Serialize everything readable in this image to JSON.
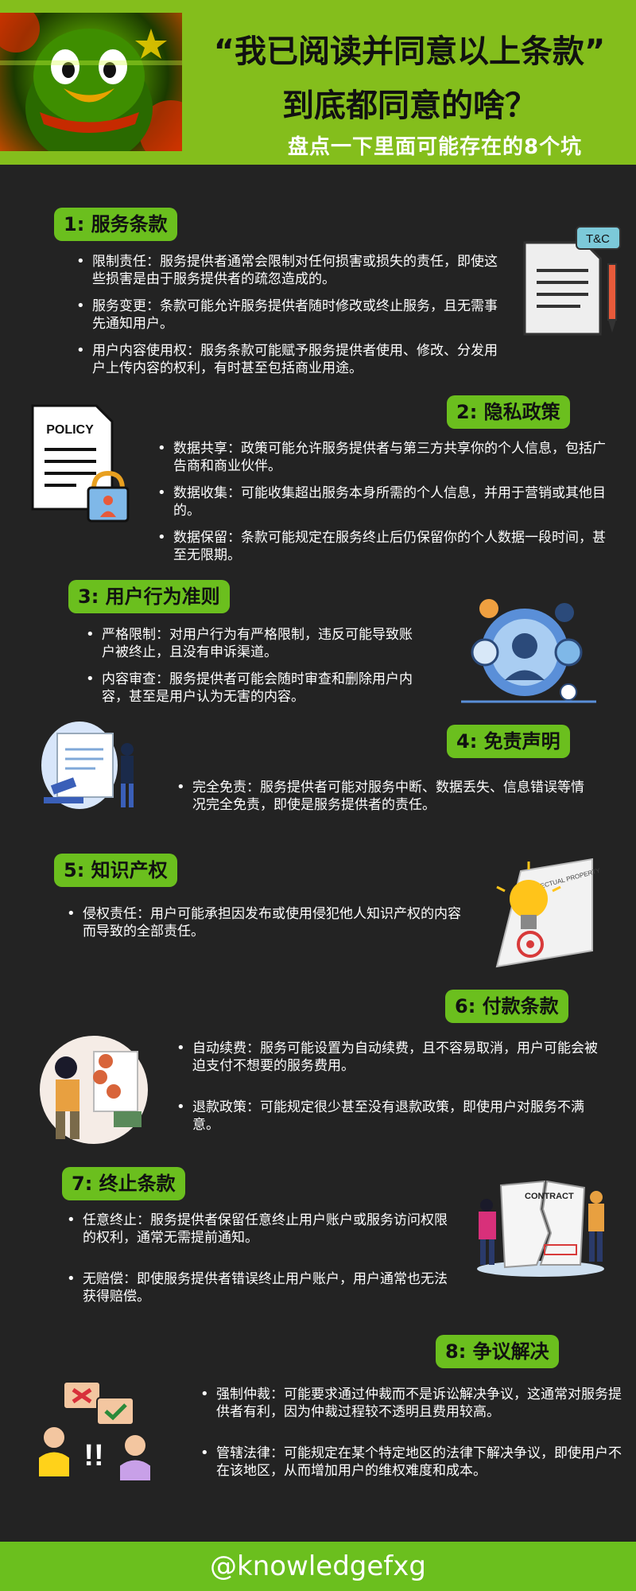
{
  "header": {
    "title_line1": "“我已阅读并同意以上条款”",
    "title_line2": "到底都同意的啥？",
    "subtitle": "盘点一下里面可能存在的8个坑"
  },
  "sections": [
    {
      "heading": "1: 服务条款",
      "bullets": [
        "限制责任：服务提供者通常会限制对任何损害或损失的责任，即使这些损害是由于服务提供者的疏忽造成的。",
        "服务变更：条款可能允许服务提供者随时修改或终止服务，且无需事先通知用户。",
        "用户内容使用权：服务条款可能赋予服务提供者使用、修改、分发用户上传内容的权利，有时甚至包括商业用途。"
      ]
    },
    {
      "heading": "2: 隐私政策",
      "bullets": [
        "数据共享：政策可能允许服务提供者与第三方共享你的个人信息，包括广告商和商业伙伴。",
        "数据收集：可能收集超出服务本身所需的个人信息，并用于营销或其他目的。",
        "数据保留：条款可能规定在服务终止后仍保留你的个人数据一段时间，甚至无限期。"
      ]
    },
    {
      "heading": "3: 用户行为准则",
      "bullets": [
        "严格限制：对用户行为有严格限制，违反可能导致账户被终止，且没有申诉渠道。",
        "内容审查：服务提供者可能会随时审查和删除用户内容，甚至是用户认为无害的内容。"
      ]
    },
    {
      "heading": "4: 免责声明",
      "bullets": [
        "完全免责：服务提供者可能对服务中断、数据丢失、信息错误等情况完全免责，即使是服务提供者的责任。"
      ]
    },
    {
      "heading": "5: 知识产权",
      "bullets": [
        "侵权责任：用户可能承担因发布或使用侵犯他人知识产权的内容而导致的全部责任。"
      ]
    },
    {
      "heading": "6: 付款条款",
      "bullets": [
        "自动续费：服务可能设置为自动续费，且不容易取消，用户可能会被迫支付不想要的服务费用。",
        "退款政策：可能规定很少甚至没有退款政策，即使用户对服务不满意。"
      ]
    },
    {
      "heading": "7: 终止条款",
      "bullets": [
        "任意终止：服务提供者保留任意终止用户账户或服务访问权限的权利，通常无需提前通知。",
        "无赔偿：即使服务提供者错误终止用户账户，用户通常也无法获得赔偿。"
      ]
    },
    {
      "heading": "8: 争议解决",
      "bullets": [
        "强制仲裁：可能要求通过仲裁而不是诉讼解决争议，这通常对服务提供者有利，因为仲裁过程较不透明且费用较高。",
        "管辖法律：可能规定在某个特定地区的法律下解决争议，即使用户不在该地区，从而增加用户的维权难度和成本。"
      ]
    }
  ],
  "icon_labels": {
    "tc": "T&C",
    "policy": "POLICY",
    "contract": "CONTRACT",
    "ip": "INTELLECTUAL PROPERTY"
  },
  "footer": "@knowledgefxg",
  "colors": {
    "header_bg": "#84be1c",
    "pill_bg": "#6bbf1e",
    "page_bg": "#232323"
  }
}
